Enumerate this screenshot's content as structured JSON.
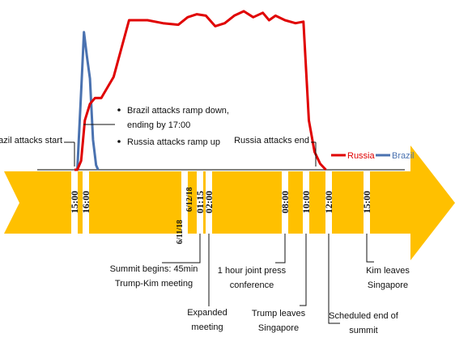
{
  "chart_data": {
    "type": "line",
    "title": "",
    "series": [
      {
        "name": "Russia",
        "color": "#e00000",
        "points": [
          [
            "6/11/18 15:00",
            0
          ],
          [
            "6/11/18 15:15",
            0
          ],
          [
            "6/11/18 15:35",
            0.06
          ],
          [
            "6/11/18 15:55",
            0.33
          ],
          [
            "6/11/18 16:20",
            0.44
          ],
          [
            "6/11/18 16:45",
            0.48
          ],
          [
            "6/11/18 17:15",
            0.48
          ],
          [
            "6/11/18 18:15",
            0.62
          ],
          [
            "6/11/18 19:30",
            1.0
          ],
          [
            "6/11/18 21:00",
            1.0
          ],
          [
            "6/11/18 22:15",
            0.98
          ],
          [
            "6/11/18 23:30",
            0.97
          ],
          [
            "6/12/18 00:15",
            1.02
          ],
          [
            "6/12/18 01:00",
            1.04
          ],
          [
            "6/12/18 01:45",
            1.03
          ],
          [
            "6/12/18 02:30",
            0.96
          ],
          [
            "6/12/18 03:15",
            0.98
          ],
          [
            "6/12/18 04:00",
            1.03
          ],
          [
            "6/12/18 04:45",
            1.06
          ],
          [
            "6/12/18 05:30",
            1.02
          ],
          [
            "6/12/18 06:15",
            1.05
          ],
          [
            "6/12/18 06:45",
            1.0
          ],
          [
            "6/12/18 07:15",
            1.03
          ],
          [
            "6/12/18 08:00",
            1.0
          ],
          [
            "6/12/18 09:00",
            0.98
          ],
          [
            "6/12/18 09:45",
            0.99
          ],
          [
            "6/12/18 10:15",
            0.33
          ],
          [
            "6/12/18 10:45",
            0.12
          ],
          [
            "6/12/18 11:15",
            0.04
          ],
          [
            "6/12/18 11:45",
            0
          ]
        ]
      },
      {
        "name": "Brazil",
        "color": "#4a72b0",
        "points": [
          [
            "6/11/18 15:00",
            0
          ],
          [
            "6/11/18 15:15",
            0
          ],
          [
            "6/11/18 15:35",
            0.52
          ],
          [
            "6/11/18 15:50",
            0.92
          ],
          [
            "6/11/18 16:05",
            0.76
          ],
          [
            "6/11/18 16:20",
            0.61
          ],
          [
            "6/11/18 16:35",
            0.2
          ],
          [
            "6/11/18 16:50",
            0.03
          ],
          [
            "6/11/18 17:00",
            0
          ]
        ]
      }
    ],
    "timeline_ticks": [
      {
        "label": "15:00",
        "time": "6/11/18 15:00"
      },
      {
        "label": "16:00",
        "time": "6/11/18 16:00"
      },
      {
        "label": "01:15",
        "time": "6/12/18 01:15"
      },
      {
        "label": "02:00",
        "time": "6/12/18 02:00"
      },
      {
        "label": "08:00",
        "time": "6/12/18 08:00"
      },
      {
        "label": "10:00",
        "time": "6/12/18 10:00"
      },
      {
        "label": "12:00",
        "time": "6/12/18 12:00"
      },
      {
        "label": "15:00",
        "time": "6/12/18 15:00"
      }
    ],
    "date_marks": [
      "6/11/18",
      "6/12/18"
    ],
    "legend": {
      "placement": "right",
      "entries": [
        "Russia",
        "Brazil"
      ]
    },
    "colors": {
      "arrow": "#ffc000",
      "divider": "#ffffff",
      "baseline": "#595959"
    },
    "annotations": {
      "brazil_start": "Brazil attacks start",
      "ramp_line_1": "Brazil attacks ramp down,",
      "ramp_line_2": "ending by 17:00",
      "ramp_line_3": "Russia attacks ramp up",
      "russia_end": "Russia attacks end"
    },
    "events": [
      {
        "line1": "Summit begins: 45min",
        "line2": "Trump-Kim meeting",
        "time": "6/12/18 01:15"
      },
      {
        "line1": "Expanded",
        "line2": "meeting",
        "time": "6/12/18 02:00"
      },
      {
        "line1": "1 hour joint press",
        "line2": "conference",
        "time": "6/12/18 08:00"
      },
      {
        "line1": "Trump leaves",
        "line2": "Singapore",
        "time": "6/12/18 10:00"
      },
      {
        "line1": "Scheduled end of",
        "line2": "summit",
        "time": "6/12/18 12:00"
      },
      {
        "line1": "Kim leaves",
        "line2": "Singapore",
        "time": "6/12/18 15:00"
      }
    ]
  }
}
